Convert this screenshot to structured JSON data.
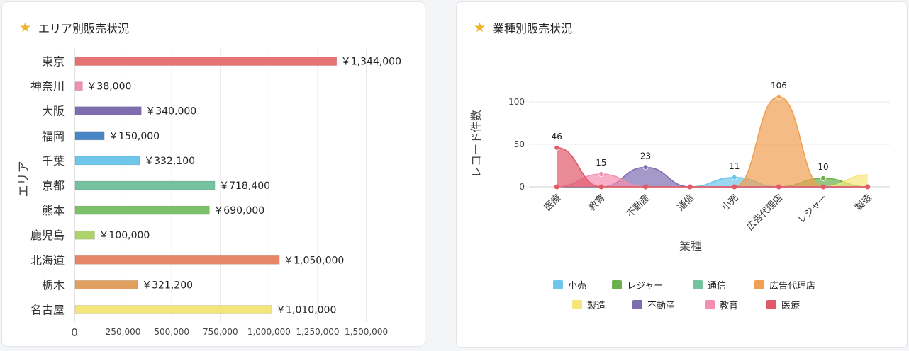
{
  "left_panel": {
    "title": "エリア別販売状況",
    "star_icon": "★"
  },
  "right_panel": {
    "title": "業種別販売状況",
    "star_icon": "★"
  },
  "chart_data": [
    {
      "type": "bar",
      "orientation": "horizontal",
      "title": "エリア別販売状況",
      "ylabel": "エリア",
      "xlabel": "",
      "categories": [
        "東京",
        "神奈川",
        "大阪",
        "福岡",
        "千葉",
        "京都",
        "熊本",
        "鹿児島",
        "北海道",
        "栃木",
        "名古屋"
      ],
      "values": [
        1344000,
        38000,
        340000,
        150000,
        332100,
        718400,
        690000,
        100000,
        1050000,
        321200,
        1010000
      ],
      "data_labels": [
        "￥1,344,000",
        "￥38,000",
        "￥340,000",
        "￥150,000",
        "￥332,100",
        "￥718,400",
        "￥690,000",
        "￥100,000",
        "￥1,050,000",
        "￥321,200",
        "￥1,010,000"
      ],
      "colors": [
        "#e57373",
        "#f48fb1",
        "#7e6eb0",
        "#4a86c5",
        "#6ec6ea",
        "#74c2a0",
        "#7cc06a",
        "#aed36c",
        "#e8866a",
        "#e0a060",
        "#f5e67a"
      ],
      "xticks": [
        "0",
        "250,000",
        "500,000",
        "750,000",
        "1,000,000",
        "1,250,000",
        "1,500,000"
      ],
      "xlim": [
        0,
        1600000
      ],
      "grid": true
    },
    {
      "type": "area",
      "title": "業種別販売状況",
      "xlabel": "業種",
      "ylabel": "レコード件数",
      "categories": [
        "医療",
        "教育",
        "不動産",
        "通信",
        "小売",
        "広告代理店",
        "レジャー",
        "製造"
      ],
      "ylim": [
        0,
        120
      ],
      "yticks": [
        "0",
        "50",
        "100"
      ],
      "legend_position": "bottom",
      "series": [
        {
          "name": "小売",
          "color": "#6ec6ea",
          "values": [
            0,
            0,
            0,
            0,
            11,
            0,
            0,
            0
          ],
          "label_index": 4,
          "label": "11"
        },
        {
          "name": "レジャー",
          "color": "#6ab04c",
          "values": [
            0,
            0,
            0,
            0,
            0,
            0,
            10,
            0
          ],
          "label_index": 6,
          "label": "10"
        },
        {
          "name": "通信",
          "color": "#74c2a0",
          "values": [
            0,
            0,
            0,
            0,
            0,
            0,
            0,
            0
          ]
        },
        {
          "name": "広告代理店",
          "color": "#f0a050",
          "values": [
            0,
            0,
            0,
            0,
            0,
            106,
            0,
            0
          ],
          "label_index": 5,
          "label": "106"
        },
        {
          "name": "製造",
          "color": "#f5e67a",
          "values": [
            0,
            0,
            0,
            0,
            0,
            0,
            0,
            14
          ]
        },
        {
          "name": "不動産",
          "color": "#7e6eb0",
          "values": [
            0,
            0,
            23,
            0,
            0,
            0,
            0,
            0
          ],
          "label_index": 2,
          "label": "23"
        },
        {
          "name": "教育",
          "color": "#f48fb1",
          "values": [
            0,
            15,
            0,
            0,
            0,
            0,
            0,
            0
          ],
          "label_index": 1,
          "label": "15"
        },
        {
          "name": "医療",
          "color": "#e05a6a",
          "values": [
            46,
            0,
            0,
            0,
            0,
            0,
            0,
            0
          ],
          "label_index": 0,
          "label": "46"
        }
      ]
    }
  ]
}
